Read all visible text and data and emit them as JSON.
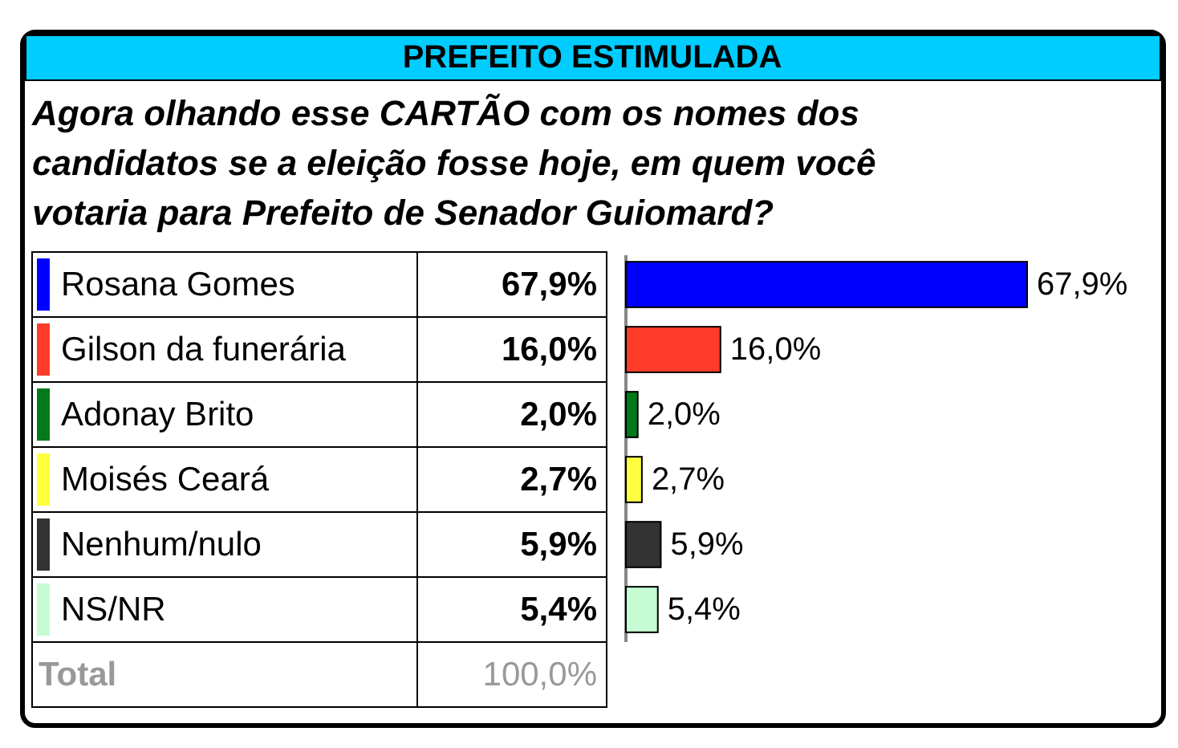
{
  "chart_data": {
    "type": "bar",
    "orientation": "horizontal",
    "title": "PREFEITO ESTIMULADA",
    "subtitle": "Agora olhando esse CARTÃO com os nomes dos candidatos se a eleição fosse hoje, em quem você votaria para Prefeito de Senador Guiomard?",
    "categories": [
      "Rosana Gomes",
      "Gilson da funerária",
      "Adonay Brito",
      "Moisés Ceará",
      "Nenhum/nulo",
      "NS/NR"
    ],
    "values": [
      67.9,
      16.0,
      2.0,
      2.7,
      5.9,
      5.4
    ],
    "value_labels": [
      "67,9%",
      "16,0%",
      "2,0%",
      "2,7%",
      "5,9%",
      "5,4%"
    ],
    "colors": [
      "#0000ff",
      "#ff3b2a",
      "#007a1a",
      "#ffff40",
      "#333333",
      "#c6fcd4"
    ],
    "annotations": [
      "Total",
      "100,0%"
    ]
  }
}
